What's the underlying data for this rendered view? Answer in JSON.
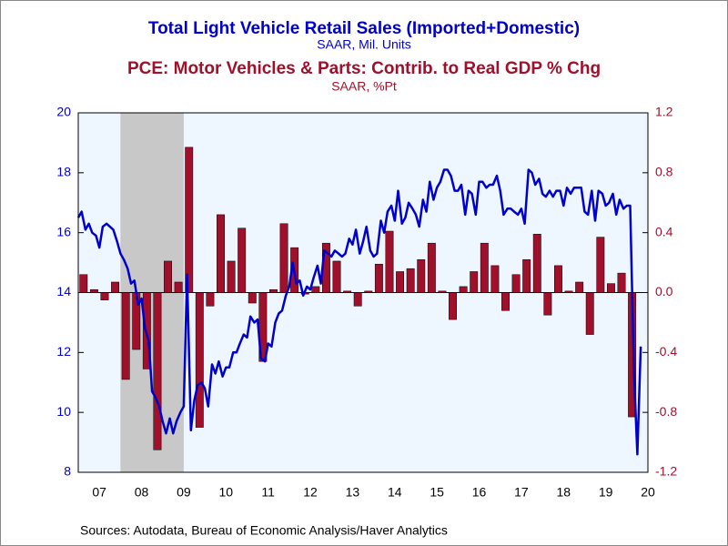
{
  "chart_data": {
    "type": "combo",
    "sources": "Sources:  Autodata, Bureau of Economic Analysis/Haver Analytics",
    "xlim": [
      2007,
      2020.5
    ],
    "xticks": [
      {
        "value": 2007.5,
        "label": "07"
      },
      {
        "value": 2008.5,
        "label": "08"
      },
      {
        "value": 2009.5,
        "label": "09"
      },
      {
        "value": 2010.5,
        "label": "10"
      },
      {
        "value": 2011.5,
        "label": "11"
      },
      {
        "value": 2012.5,
        "label": "12"
      },
      {
        "value": 2013.5,
        "label": "13"
      },
      {
        "value": 2014.5,
        "label": "14"
      },
      {
        "value": 2015.5,
        "label": "15"
      },
      {
        "value": 2016.5,
        "label": "16"
      },
      {
        "value": 2017.5,
        "label": "17"
      },
      {
        "value": 2018.5,
        "label": "18"
      },
      {
        "value": 2019.5,
        "label": "19"
      },
      {
        "value": 2020.5,
        "label": "20"
      }
    ],
    "ylim": [
      8,
      20
    ],
    "yticks": [
      8,
      10,
      12,
      14,
      16,
      18,
      20
    ],
    "y2lim": [
      -1.2,
      1.2
    ],
    "y2ticks": [
      -1.2,
      -0.8,
      -0.4,
      {
        "value": 0,
        "label": "0.0"
      },
      0.4,
      0.8,
      1.2
    ],
    "recession": [
      2008,
      2009.5
    ],
    "recession_color": "#c8c8c8",
    "background": "#eef6ff",
    "series": [
      {
        "name": "Total Light Vehicle Retail Sales (Imported+Domestic)",
        "unit": "SAAR, Mil. Units",
        "type": "line",
        "color": "#0000cc",
        "x": [
          2007.0,
          2007.08,
          2007.17,
          2007.25,
          2007.33,
          2007.42,
          2007.5,
          2007.58,
          2007.67,
          2007.75,
          2007.83,
          2007.92,
          2008.0,
          2008.08,
          2008.17,
          2008.25,
          2008.33,
          2008.42,
          2008.5,
          2008.58,
          2008.67,
          2008.75,
          2008.83,
          2008.92,
          2009.0,
          2009.08,
          2009.17,
          2009.25,
          2009.33,
          2009.42,
          2009.5,
          2009.58,
          2009.67,
          2009.75,
          2009.83,
          2009.92,
          2010.0,
          2010.08,
          2010.17,
          2010.25,
          2010.33,
          2010.42,
          2010.5,
          2010.58,
          2010.67,
          2010.75,
          2010.83,
          2010.92,
          2011.0,
          2011.08,
          2011.17,
          2011.25,
          2011.33,
          2011.42,
          2011.5,
          2011.58,
          2011.67,
          2011.75,
          2011.83,
          2011.92,
          2012.0,
          2012.08,
          2012.17,
          2012.25,
          2012.33,
          2012.42,
          2012.5,
          2012.58,
          2012.67,
          2012.75,
          2012.83,
          2012.92,
          2013.0,
          2013.08,
          2013.17,
          2013.25,
          2013.33,
          2013.42,
          2013.5,
          2013.58,
          2013.67,
          2013.75,
          2013.83,
          2013.92,
          2014.0,
          2014.08,
          2014.17,
          2014.25,
          2014.33,
          2014.42,
          2014.5,
          2014.58,
          2014.67,
          2014.75,
          2014.83,
          2014.92,
          2015.0,
          2015.08,
          2015.17,
          2015.25,
          2015.33,
          2015.42,
          2015.5,
          2015.58,
          2015.67,
          2015.75,
          2015.83,
          2015.92,
          2016.0,
          2016.08,
          2016.17,
          2016.25,
          2016.33,
          2016.42,
          2016.5,
          2016.58,
          2016.67,
          2016.75,
          2016.83,
          2016.92,
          2017.0,
          2017.08,
          2017.17,
          2017.25,
          2017.33,
          2017.42,
          2017.5,
          2017.58,
          2017.67,
          2017.75,
          2017.83,
          2017.92,
          2018.0,
          2018.08,
          2018.17,
          2018.25,
          2018.33,
          2018.42,
          2018.5,
          2018.58,
          2018.67,
          2018.75,
          2018.83,
          2018.92,
          2019.0,
          2019.08,
          2019.17,
          2019.25,
          2019.33,
          2019.42,
          2019.5,
          2019.58,
          2019.67,
          2019.75,
          2019.83,
          2019.92,
          2020.0,
          2020.08,
          2020.17,
          2020.25,
          2020.33
        ],
        "values": [
          16.5,
          16.7,
          16.1,
          16.3,
          16.0,
          15.9,
          15.5,
          16.2,
          16.3,
          16.2,
          16.1,
          15.7,
          15.3,
          15.1,
          14.8,
          14.3,
          14.4,
          13.6,
          13.8,
          12.8,
          12.4,
          10.7,
          10.5,
          10.2,
          9.7,
          9.3,
          9.8,
          9.3,
          9.7,
          10.0,
          10.2,
          14.6,
          9.4,
          10.4,
          10.9,
          11.0,
          10.8,
          10.2,
          11.6,
          11.3,
          11.7,
          11.2,
          11.5,
          11.5,
          12.0,
          12.0,
          12.3,
          12.6,
          12.5,
          13.2,
          13.0,
          13.1,
          11.8,
          11.7,
          12.3,
          12.2,
          13.0,
          13.3,
          13.4,
          13.9,
          14.2,
          15.0,
          14.3,
          14.4,
          13.9,
          14.2,
          14.1,
          14.5,
          14.9,
          14.3,
          15.4,
          15.3,
          15.2,
          15.4,
          15.3,
          15.2,
          15.3,
          15.8,
          15.6,
          16.1,
          15.3,
          15.7,
          16.2,
          15.4,
          15.2,
          15.3,
          16.4,
          16.0,
          16.7,
          16.9,
          16.4,
          17.4,
          16.3,
          16.5,
          17.0,
          16.8,
          16.6,
          16.2,
          17.1,
          16.7,
          17.7,
          17.1,
          17.5,
          17.7,
          18.1,
          18.1,
          17.9,
          17.4,
          17.4,
          17.6,
          16.6,
          17.4,
          17.3,
          16.6,
          17.7,
          17.7,
          17.5,
          17.6,
          17.6,
          17.9,
          17.4,
          16.6,
          16.8,
          16.8,
          16.7,
          16.6,
          16.8,
          16.3,
          18.1,
          18.0,
          17.6,
          17.8,
          17.3,
          17.2,
          17.4,
          17.2,
          17.4,
          17.4,
          16.9,
          17.5,
          17.3,
          17.5,
          17.5,
          17.5,
          16.7,
          16.6,
          17.4,
          16.4,
          17.4,
          17.3,
          16.9,
          17.0,
          17.3,
          16.6,
          17.1,
          16.8,
          16.9,
          16.9,
          11.3,
          8.6,
          12.2
        ]
      },
      {
        "name": "PCE: Motor Vehicles & Parts: Contrib. to Real GDP % Chg",
        "unit": "SAAR, %Pt",
        "type": "bar",
        "axis": "y2",
        "color": "#a0102a",
        "x": [
          2007.125,
          2007.375,
          2007.625,
          2007.875,
          2008.125,
          2008.375,
          2008.625,
          2008.875,
          2009.125,
          2009.375,
          2009.625,
          2009.875,
          2010.125,
          2010.375,
          2010.625,
          2010.875,
          2011.125,
          2011.375,
          2011.625,
          2011.875,
          2012.125,
          2012.375,
          2012.625,
          2012.875,
          2013.125,
          2013.375,
          2013.625,
          2013.875,
          2014.125,
          2014.375,
          2014.625,
          2014.875,
          2015.125,
          2015.375,
          2015.625,
          2015.875,
          2016.125,
          2016.375,
          2016.625,
          2016.875,
          2017.125,
          2017.375,
          2017.625,
          2017.875,
          2018.125,
          2018.375,
          2018.625,
          2018.875,
          2019.125,
          2019.375,
          2019.625,
          2019.875,
          2020.125
        ],
        "values": [
          0.12,
          0.02,
          -0.05,
          0.07,
          -0.58,
          -0.38,
          -0.51,
          -1.05,
          0.21,
          0.07,
          0.97,
          -0.9,
          -0.09,
          0.52,
          0.21,
          0.43,
          -0.07,
          -0.46,
          0.02,
          0.46,
          0.3,
          -0.01,
          0.04,
          0.33,
          0.21,
          0.01,
          -0.09,
          0.01,
          0.19,
          0.41,
          0.14,
          0.16,
          0.22,
          0.33,
          0.01,
          -0.18,
          0.04,
          0.14,
          0.33,
          0.18,
          -0.12,
          0.12,
          0.22,
          0.39,
          -0.15,
          0.18,
          0.01,
          0.07,
          -0.28,
          0.37,
          0.06,
          0.13,
          -0.83
        ]
      }
    ]
  }
}
